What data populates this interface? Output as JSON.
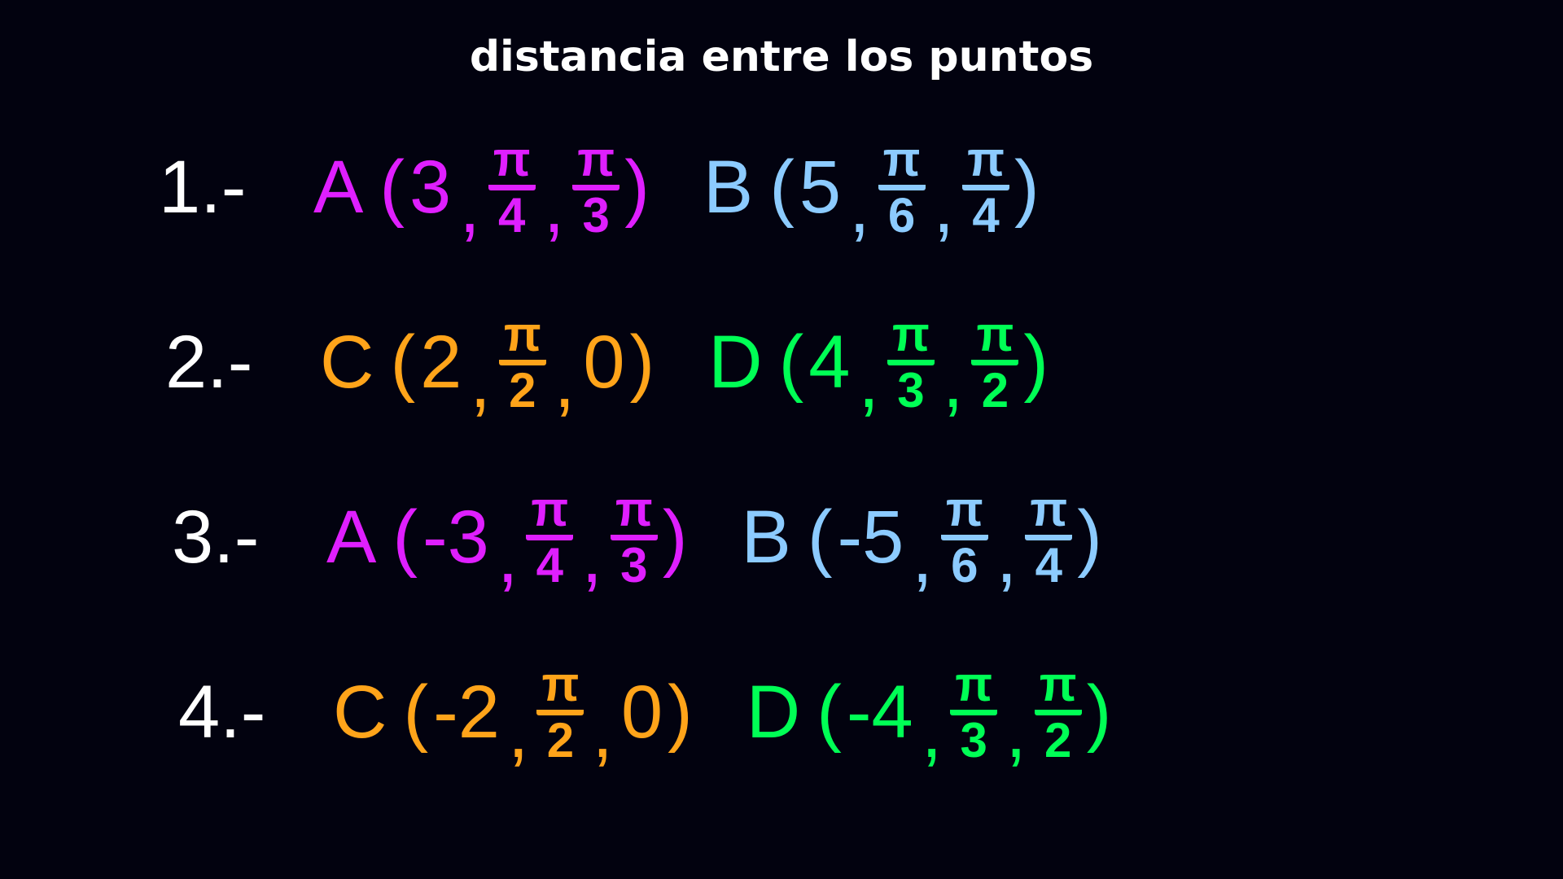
{
  "title": "distancia entre los puntos",
  "colors": {
    "background": "#02020f",
    "magenta": "#df1fff",
    "blue": "#8ccbff",
    "orange": "#ffa41a",
    "green": "#00ff55",
    "white": "#ffffff"
  },
  "punctuation": {
    "open": "(",
    "close": ")",
    "comma": ","
  },
  "rows": [
    {
      "label": "1.-",
      "points": [
        {
          "name": "A",
          "color": "#df1fff",
          "coords": [
            {
              "value": "3"
            },
            {
              "num": "π",
              "den": "4"
            },
            {
              "num": "π",
              "den": "3"
            }
          ]
        },
        {
          "name": "B",
          "color": "#8ccbff",
          "coords": [
            {
              "value": "5"
            },
            {
              "num": "π",
              "den": "6"
            },
            {
              "num": "π",
              "den": "4"
            }
          ]
        }
      ]
    },
    {
      "label": "2.-",
      "points": [
        {
          "name": "C",
          "color": "#ffa41a",
          "coords": [
            {
              "value": "2"
            },
            {
              "num": "π",
              "den": "2"
            },
            {
              "value": "0"
            }
          ]
        },
        {
          "name": "D",
          "color": "#00ff55",
          "coords": [
            {
              "value": "4"
            },
            {
              "num": "π",
              "den": "3"
            },
            {
              "num": "π",
              "den": "2"
            }
          ]
        }
      ]
    },
    {
      "label": "3.-",
      "points": [
        {
          "name": "A",
          "color": "#df1fff",
          "coords": [
            {
              "value": "-3"
            },
            {
              "num": "π",
              "den": "4"
            },
            {
              "num": "π",
              "den": "3"
            }
          ]
        },
        {
          "name": "B",
          "color": "#8ccbff",
          "coords": [
            {
              "value": "-5"
            },
            {
              "num": "π",
              "den": "6"
            },
            {
              "num": "π",
              "den": "4"
            }
          ]
        }
      ]
    },
    {
      "label": "4.-",
      "points": [
        {
          "name": "C",
          "color": "#ffa41a",
          "coords": [
            {
              "value": "-2"
            },
            {
              "num": "π",
              "den": "2"
            },
            {
              "value": "0"
            }
          ]
        },
        {
          "name": "D",
          "color": "#00ff55",
          "coords": [
            {
              "value": "-4"
            },
            {
              "num": "π",
              "den": "3"
            },
            {
              "num": "π",
              "den": "2"
            }
          ]
        }
      ]
    }
  ]
}
